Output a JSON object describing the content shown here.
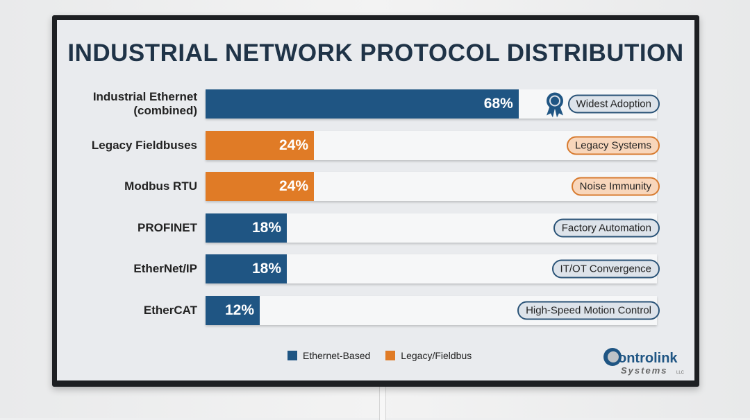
{
  "chart_data": {
    "type": "bar",
    "orientation": "horizontal",
    "title": "INDUSTRIAL NETWORK PROTOCOL DISTRIBUTION",
    "categories": [
      "Industrial Ethernet (combined)",
      "Legacy Fieldbuses",
      "Modbus RTU",
      "PROFINET",
      "EtherNet/IP",
      "EtherCAT"
    ],
    "values": [
      68,
      24,
      24,
      18,
      18,
      12
    ],
    "value_labels": [
      "68%",
      "24%",
      "24%",
      "18%",
      "18%",
      "12%"
    ],
    "groups": [
      "Ethernet-Based",
      "Legacy/Fieldbus",
      "Legacy/Fieldbus",
      "Ethernet-Based",
      "Ethernet-Based",
      "Ethernet-Based"
    ],
    "annotations": [
      "Widest Adoption",
      "Legacy Systems",
      "Noise Immunity",
      "Factory Automation",
      "IT/OT Convergence",
      "High-Speed Motion Control"
    ],
    "xlim": [
      0,
      100
    ],
    "grid": false,
    "legend": {
      "position": "bottom",
      "entries": [
        {
          "name": "Ethernet-Based",
          "color": "#1f5583"
        },
        {
          "name": "Legacy/Fieldbus",
          "color": "#e07b26"
        }
      ]
    }
  },
  "labels_split": [
    [
      "Industrial Ethernet",
      "(combined)"
    ],
    [
      "Legacy Fieldbuses"
    ],
    [
      "Modbus RTU"
    ],
    [
      "PROFINET"
    ],
    [
      "EtherNet/IP"
    ],
    [
      "EtherCAT"
    ]
  ],
  "logo": {
    "line1": "Controlink",
    "line2": "Systems",
    "suffix": "LLC"
  },
  "icons": {
    "row0": "award-ribbon-icon"
  }
}
